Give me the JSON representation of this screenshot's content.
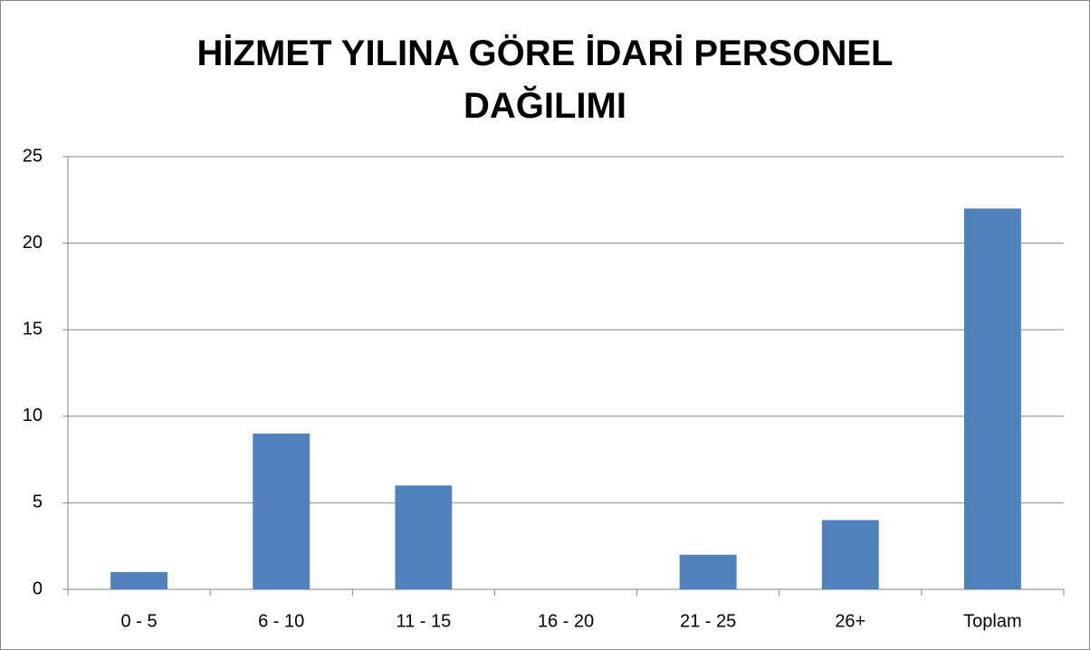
{
  "chart_data": {
    "type": "bar",
    "title": "HİZMET YILINA GÖRE İDARİ PERSONEL DAĞILIMI",
    "categories": [
      "0 - 5",
      "6 - 10",
      "11 - 15",
      "16 - 20",
      "21 - 25",
      "26+",
      "Toplam"
    ],
    "values": [
      1,
      9,
      6,
      0,
      2,
      4,
      22
    ],
    "color": "#4f81bd",
    "ylim": [
      0,
      25
    ],
    "yticks": [
      0,
      5,
      10,
      15,
      20,
      25
    ],
    "grid": true
  }
}
